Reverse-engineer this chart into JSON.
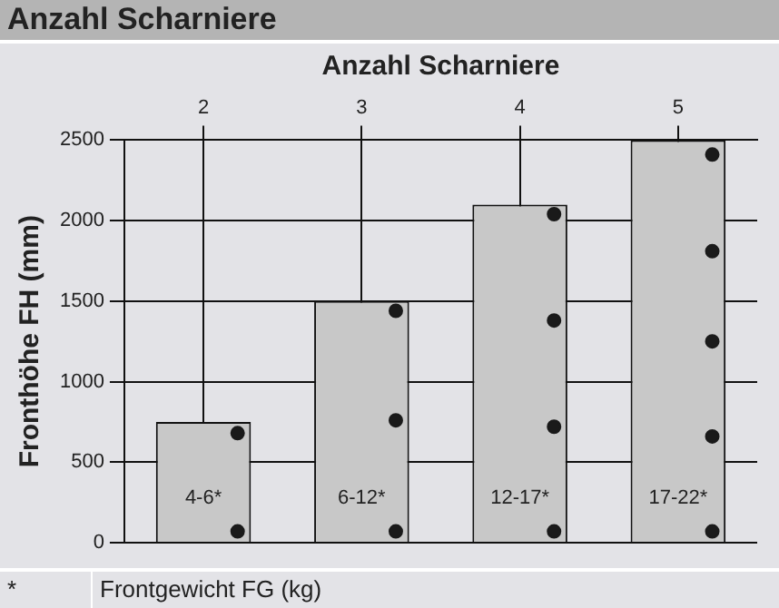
{
  "chart_data": {
    "type": "bar",
    "title": "Anzahl Scharniere",
    "xlabel": "Anzahl Scharniere",
    "ylabel": "Fronthöhe FH (mm)",
    "categories": [
      "2",
      "3",
      "4",
      "5"
    ],
    "legend": false,
    "grid": true,
    "marker": "circle",
    "ylim": [
      0,
      2500
    ],
    "yticks": [
      0,
      500,
      1000,
      1500,
      2000,
      2500
    ],
    "series": [
      {
        "type": "bar",
        "color": "#c8c8c8",
        "values": [
          750,
          1500,
          2100,
          2500
        ],
        "value_labels": [
          "4-6*",
          "6-12*",
          "12-17*",
          "17-22*"
        ]
      },
      {
        "type": "scatter",
        "color": "#1a1a1a",
        "x": [
          "2",
          "2",
          "3",
          "3",
          "3",
          "4",
          "4",
          "4",
          "4",
          "5",
          "5",
          "5",
          "5",
          "5"
        ],
        "values": [
          680,
          70,
          1440,
          760,
          70,
          2040,
          1380,
          720,
          70,
          2410,
          1810,
          1250,
          660,
          70
        ]
      }
    ],
    "annotations": [
      "*",
      "Frontgewicht FG (kg)"
    ]
  }
}
